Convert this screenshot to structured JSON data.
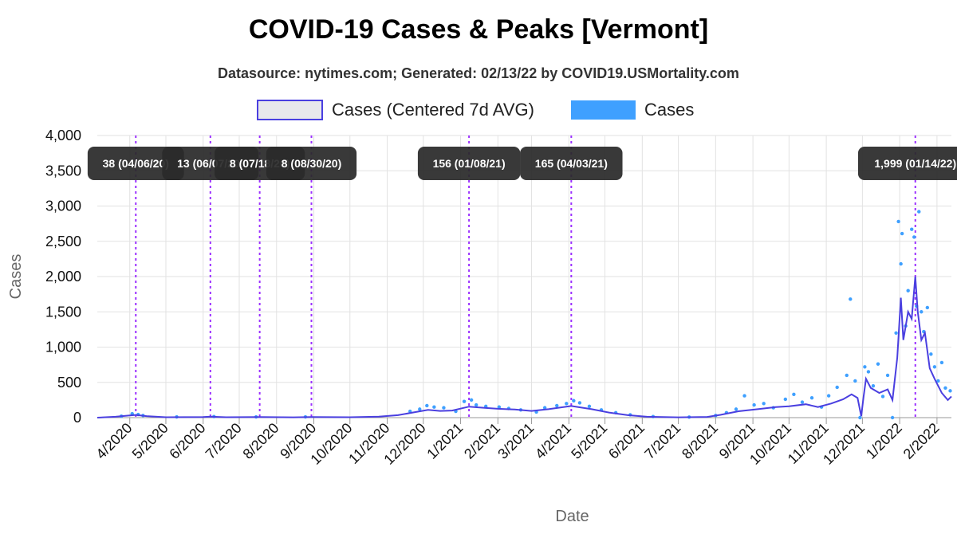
{
  "chart_data": {
    "type": "line",
    "title": "COVID-19 Cases & Peaks [Vermont]",
    "subtitle": "Datasource: nytimes.com; Generated: 02/13/22 by COVID19.USMortality.com",
    "xlabel": "Date",
    "ylabel": "Cases",
    "ylim": [
      0,
      4000
    ],
    "yticks": [
      "0",
      "500",
      "1,000",
      "1,500",
      "2,000",
      "2,500",
      "3,000",
      "3,500",
      "4,000"
    ],
    "ytick_values": [
      0,
      500,
      1000,
      1500,
      2000,
      2500,
      3000,
      3500,
      4000
    ],
    "xlim": [
      "2020-03-05",
      "2022-02-13"
    ],
    "xticks": [
      "4/2020",
      "5/2020",
      "6/2020",
      "7/2020",
      "8/2020",
      "9/2020",
      "10/2020",
      "11/2020",
      "12/2020",
      "1/2021",
      "2/2021",
      "3/2021",
      "4/2021",
      "5/2021",
      "6/2021",
      "7/2021",
      "8/2021",
      "9/2021",
      "10/2021",
      "11/2021",
      "12/2021",
      "1/2022",
      "2/2022"
    ],
    "xtick_dates": [
      "2020-04-01",
      "2020-05-01",
      "2020-06-01",
      "2020-07-01",
      "2020-08-01",
      "2020-09-01",
      "2020-10-01",
      "2020-11-01",
      "2020-12-01",
      "2021-01-01",
      "2021-02-01",
      "2021-03-01",
      "2021-04-01",
      "2021-05-01",
      "2021-06-01",
      "2021-07-01",
      "2021-08-01",
      "2021-09-01",
      "2021-10-01",
      "2021-11-01",
      "2021-12-01",
      "2022-01-01",
      "2022-02-01"
    ],
    "grid": true,
    "legend_position": "top",
    "legend": [
      {
        "name": "Cases (Centered 7d AVG)",
        "color": "#4a3fe0",
        "fill": "#e8e8ec"
      },
      {
        "name": "Cases",
        "color": "#3fa0ff"
      }
    ],
    "series": [
      {
        "name": "Cases (Centered 7d AVG)",
        "style": "line",
        "color": "#4a3fe0",
        "points": [
          [
            "2020-03-05",
            0
          ],
          [
            "2020-03-20",
            12
          ],
          [
            "2020-04-01",
            30
          ],
          [
            "2020-04-06",
            38
          ],
          [
            "2020-04-15",
            22
          ],
          [
            "2020-05-01",
            6
          ],
          [
            "2020-06-01",
            8
          ],
          [
            "2020-06-07",
            13
          ],
          [
            "2020-06-20",
            6
          ],
          [
            "2020-07-18",
            8
          ],
          [
            "2020-08-15",
            5
          ],
          [
            "2020-08-30",
            8
          ],
          [
            "2020-10-01",
            6
          ],
          [
            "2020-10-25",
            15
          ],
          [
            "2020-11-10",
            35
          ],
          [
            "2020-11-25",
            80
          ],
          [
            "2020-12-05",
            110
          ],
          [
            "2020-12-15",
            95
          ],
          [
            "2020-12-25",
            100
          ],
          [
            "2021-01-08",
            156
          ],
          [
            "2021-01-20",
            140
          ],
          [
            "2021-02-01",
            125
          ],
          [
            "2021-02-15",
            115
          ],
          [
            "2021-03-01",
            95
          ],
          [
            "2021-03-15",
            120
          ],
          [
            "2021-04-03",
            165
          ],
          [
            "2021-04-20",
            120
          ],
          [
            "2021-05-05",
            70
          ],
          [
            "2021-05-20",
            35
          ],
          [
            "2021-06-05",
            12
          ],
          [
            "2021-07-01",
            5
          ],
          [
            "2021-07-25",
            10
          ],
          [
            "2021-08-05",
            40
          ],
          [
            "2021-08-20",
            90
          ],
          [
            "2021-09-05",
            120
          ],
          [
            "2021-09-20",
            150
          ],
          [
            "2021-10-01",
            160
          ],
          [
            "2021-10-15",
            190
          ],
          [
            "2021-10-25",
            150
          ],
          [
            "2021-11-05",
            200
          ],
          [
            "2021-11-15",
            260
          ],
          [
            "2021-11-22",
            330
          ],
          [
            "2021-11-27",
            280
          ],
          [
            "2021-11-30",
            20
          ],
          [
            "2021-12-02",
            300
          ],
          [
            "2021-12-04",
            550
          ],
          [
            "2021-12-08",
            420
          ],
          [
            "2021-12-15",
            350
          ],
          [
            "2021-12-22",
            400
          ],
          [
            "2021-12-26",
            250
          ],
          [
            "2021-12-30",
            850
          ],
          [
            "2022-01-02",
            1700
          ],
          [
            "2022-01-04",
            1100
          ],
          [
            "2022-01-08",
            1500
          ],
          [
            "2022-01-11",
            1400
          ],
          [
            "2022-01-14",
            1999
          ],
          [
            "2022-01-16",
            1500
          ],
          [
            "2022-01-19",
            1100
          ],
          [
            "2022-01-22",
            1200
          ],
          [
            "2022-01-26",
            700
          ],
          [
            "2022-01-30",
            550
          ],
          [
            "2022-02-05",
            350
          ],
          [
            "2022-02-10",
            250
          ],
          [
            "2022-02-13",
            300
          ]
        ]
      },
      {
        "name": "Cases",
        "style": "scatter",
        "color": "#3fa0ff",
        "points": [
          [
            "2020-03-25",
            20
          ],
          [
            "2020-04-03",
            55
          ],
          [
            "2020-04-08",
            45
          ],
          [
            "2020-04-12",
            30
          ],
          [
            "2020-05-10",
            10
          ],
          [
            "2020-06-10",
            15
          ],
          [
            "2020-07-15",
            10
          ],
          [
            "2020-08-25",
            10
          ],
          [
            "2020-11-20",
            90
          ],
          [
            "2020-11-28",
            120
          ],
          [
            "2020-12-04",
            170
          ],
          [
            "2020-12-10",
            150
          ],
          [
            "2020-12-18",
            140
          ],
          [
            "2020-12-28",
            90
          ],
          [
            "2021-01-04",
            230
          ],
          [
            "2021-01-10",
            250
          ],
          [
            "2021-01-14",
            180
          ],
          [
            "2021-01-22",
            160
          ],
          [
            "2021-02-02",
            150
          ],
          [
            "2021-02-10",
            130
          ],
          [
            "2021-02-20",
            110
          ],
          [
            "2021-03-05",
            80
          ],
          [
            "2021-03-12",
            140
          ],
          [
            "2021-03-22",
            170
          ],
          [
            "2021-03-30",
            200
          ],
          [
            "2021-04-05",
            240
          ],
          [
            "2021-04-10",
            210
          ],
          [
            "2021-04-18",
            160
          ],
          [
            "2021-04-28",
            110
          ],
          [
            "2021-05-10",
            70
          ],
          [
            "2021-05-22",
            40
          ],
          [
            "2021-06-10",
            15
          ],
          [
            "2021-07-10",
            8
          ],
          [
            "2021-08-01",
            30
          ],
          [
            "2021-08-10",
            70
          ],
          [
            "2021-08-18",
            120
          ],
          [
            "2021-08-25",
            310
          ],
          [
            "2021-09-02",
            180
          ],
          [
            "2021-09-10",
            200
          ],
          [
            "2021-09-18",
            140
          ],
          [
            "2021-09-28",
            260
          ],
          [
            "2021-10-05",
            330
          ],
          [
            "2021-10-12",
            220
          ],
          [
            "2021-10-20",
            280
          ],
          [
            "2021-10-28",
            150
          ],
          [
            "2021-11-03",
            310
          ],
          [
            "2021-11-10",
            430
          ],
          [
            "2021-11-18",
            600
          ],
          [
            "2021-11-21",
            1680
          ],
          [
            "2021-11-25",
            520
          ],
          [
            "2021-11-29",
            0
          ],
          [
            "2021-12-03",
            720
          ],
          [
            "2021-12-06",
            650
          ],
          [
            "2021-12-10",
            450
          ],
          [
            "2021-12-14",
            760
          ],
          [
            "2021-12-18",
            300
          ],
          [
            "2021-12-22",
            600
          ],
          [
            "2021-12-26",
            0
          ],
          [
            "2021-12-29",
            1200
          ],
          [
            "2021-12-31",
            2780
          ],
          [
            "2022-01-02",
            2180
          ],
          [
            "2022-01-03",
            2610
          ],
          [
            "2022-01-06",
            1300
          ],
          [
            "2022-01-08",
            1800
          ],
          [
            "2022-01-11",
            2670
          ],
          [
            "2022-01-13",
            2560
          ],
          [
            "2022-01-15",
            1580
          ],
          [
            "2022-01-17",
            2920
          ],
          [
            "2022-01-19",
            1500
          ],
          [
            "2022-01-21",
            1220
          ],
          [
            "2022-01-24",
            1560
          ],
          [
            "2022-01-27",
            900
          ],
          [
            "2022-01-30",
            720
          ],
          [
            "2022-02-02",
            520
          ],
          [
            "2022-02-05",
            780
          ],
          [
            "2022-02-08",
            420
          ],
          [
            "2022-02-12",
            380
          ]
        ]
      }
    ],
    "peaks": [
      {
        "date": "2020-04-06",
        "label": "38 (04/06/20)"
      },
      {
        "date": "2020-06-07",
        "label": "13 (06/07/20)"
      },
      {
        "date": "2020-07-18",
        "label": "8 (07/18/20)"
      },
      {
        "date": "2020-08-30",
        "label": "8 (08/30/20)"
      },
      {
        "date": "2021-01-08",
        "label": "156 (01/08/21)"
      },
      {
        "date": "2021-04-03",
        "label": "165 (04/03/21)"
      },
      {
        "date": "2022-01-14",
        "label": "1,999 (01/14/22)"
      }
    ],
    "colors": {
      "avg_line": "#4a3fe0",
      "points": "#3fa0ff",
      "peak_line": "#9b30ff",
      "peak_box": "#2a2a2a",
      "grid": "#e2e2e2",
      "axis_text": "#666666"
    }
  }
}
